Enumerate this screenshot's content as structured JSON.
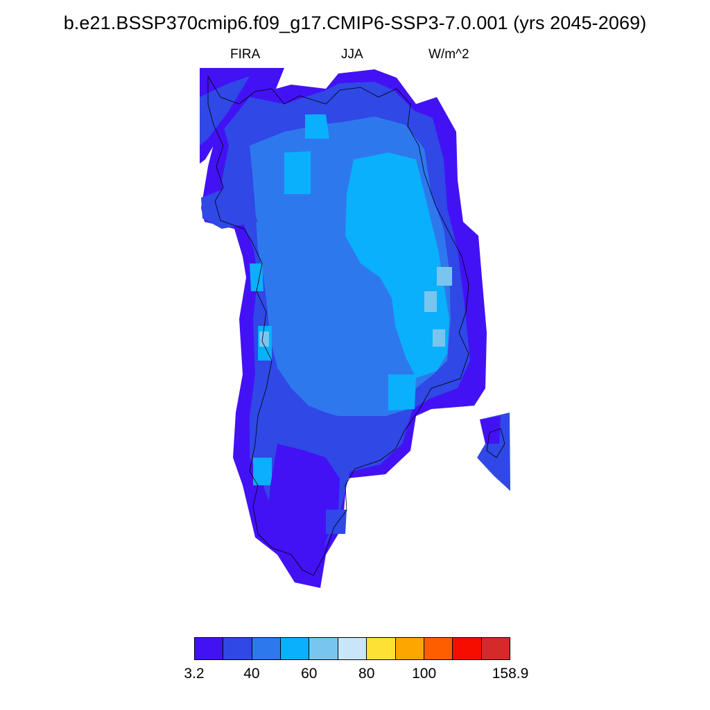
{
  "title": "b.e21.BSSP370cmip6.f09_g17.CMIP6-SSP3-7.0.001 (yrs 2045-2069)",
  "subtitle": {
    "variable": "FIRA",
    "season": "JJA",
    "units": "W/m^2"
  },
  "colorbar": {
    "colors": [
      "#4212f5",
      "#2f48e6",
      "#2e78ee",
      "#0ab0fb",
      "#78c6f0",
      "#c8e6f7",
      "#fde135",
      "#fea600",
      "#fe5e00",
      "#f70d00",
      "#d62a2a"
    ],
    "labels": [
      "3.2",
      "40",
      "60",
      "80",
      "100",
      "158.9"
    ]
  },
  "map": {
    "region": "Greenland",
    "ice_colors": {
      "coast": "#4212f5",
      "margin": "#2f48e6",
      "interior": "#2e78ee",
      "summit": "#0ab0fb",
      "patch": "#78c6f0"
    }
  }
}
